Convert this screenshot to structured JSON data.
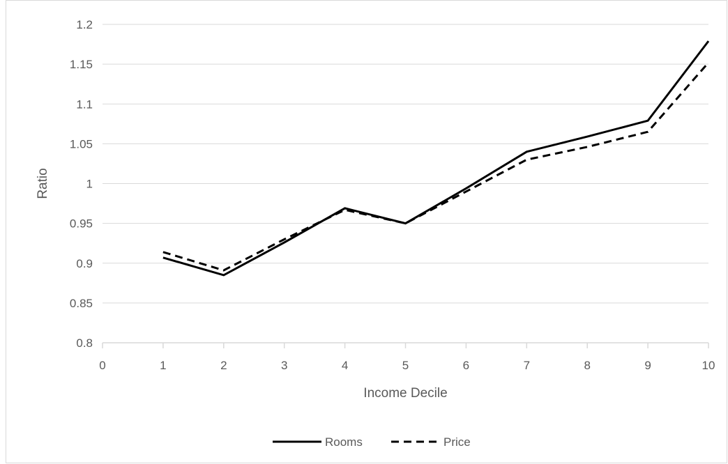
{
  "chart_data": {
    "type": "line",
    "title": "",
    "xlabel": "Income Decile",
    "ylabel": "Ratio",
    "xlim": [
      0,
      10
    ],
    "ylim": [
      0.8,
      1.2
    ],
    "x_ticks": [
      "0",
      "1",
      "2",
      "3",
      "4",
      "5",
      "6",
      "7",
      "8",
      "9",
      "10"
    ],
    "y_ticks": [
      "0.8",
      "0.85",
      "0.9",
      "0.95",
      "1",
      "1.05",
      "1.1",
      "1.15",
      "1.2"
    ],
    "grid": "horizontal",
    "legend_position": "bottom",
    "series": [
      {
        "name": "Rooms",
        "style": "solid",
        "color": "#000000",
        "x": [
          1,
          2,
          3,
          4,
          5,
          6,
          7,
          8,
          9,
          10
        ],
        "values": [
          0.907,
          0.885,
          0.926,
          0.969,
          0.95,
          0.994,
          1.04,
          1.059,
          1.079,
          1.179
        ]
      },
      {
        "name": "Price",
        "style": "dashed",
        "color": "#000000",
        "x": [
          1,
          2,
          3,
          4,
          5,
          6,
          7,
          8,
          9,
          10
        ],
        "values": [
          0.914,
          0.891,
          0.93,
          0.967,
          0.95,
          0.99,
          1.03,
          1.046,
          1.065,
          1.152
        ]
      }
    ]
  }
}
